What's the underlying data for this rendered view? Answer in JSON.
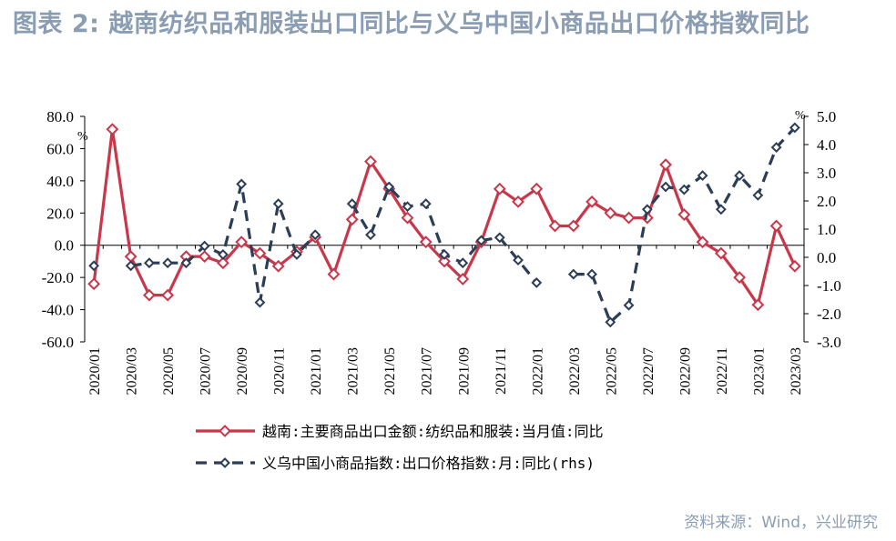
{
  "title": "图表 2:    越南纺织品和服装出口同比与义乌中国小商品出口价格指数同比",
  "source": "资料来源：Wind，兴业研究",
  "chart_data": {
    "type": "line",
    "left_unit": "%",
    "right_unit": "%",
    "ylim_left": [
      -60,
      80
    ],
    "ylim_right": [
      -3,
      5
    ],
    "left_ticks": [
      "80.0",
      "60.0",
      "40.0",
      "20.0",
      "0.0",
      "-20.0",
      "-40.0",
      "-60.0"
    ],
    "right_ticks": [
      "5.0",
      "4.0",
      "3.0",
      "2.0",
      "1.0",
      "0.0",
      "-1.0",
      "-2.0",
      "-3.0"
    ],
    "x_tick_labels": [
      "2020/01",
      "2020/03",
      "2020/05",
      "2020/07",
      "2020/09",
      "2020/11",
      "2021/01",
      "2021/03",
      "2021/05",
      "2021/07",
      "2021/09",
      "2021/11",
      "2022/01",
      "2022/03",
      "2022/05",
      "2022/07",
      "2022/09",
      "2022/11",
      "2023/01",
      "2023/03"
    ],
    "x": [
      "2020/01",
      "2020/02",
      "2020/03",
      "2020/04",
      "2020/05",
      "2020/06",
      "2020/07",
      "2020/08",
      "2020/09",
      "2020/10",
      "2020/11",
      "2020/12",
      "2021/01",
      "2021/02",
      "2021/03",
      "2021/04",
      "2021/05",
      "2021/06",
      "2021/07",
      "2021/08",
      "2021/09",
      "2021/10",
      "2021/11",
      "2021/12",
      "2022/01",
      "2022/02",
      "2022/03",
      "2022/04",
      "2022/05",
      "2022/06",
      "2022/07",
      "2022/08",
      "2022/09",
      "2022/10",
      "2022/11",
      "2022/12",
      "2023/01",
      "2023/02",
      "2023/03"
    ],
    "series": [
      {
        "name": "越南:主要商品出口金额:纺织品和服装:当月值:同比",
        "axis": "left",
        "color": "#c8374a",
        "values": [
          -24,
          72,
          -7,
          -31,
          -31,
          -7,
          -7,
          -11,
          2,
          -5,
          -13,
          -4,
          5,
          -18,
          16,
          52,
          35,
          17,
          2,
          -10,
          -21,
          2,
          35,
          27,
          35,
          12,
          12,
          27,
          20,
          17,
          17,
          50,
          19,
          2,
          -5,
          -20,
          -37,
          12,
          -13
        ]
      },
      {
        "name": "义乌中国小商品指数:出口价格指数:月:同比(rhs)",
        "axis": "right",
        "color": "#2b3d57",
        "values": [
          -0.3,
          null,
          -0.3,
          -0.2,
          -0.2,
          -0.2,
          0.4,
          0.1,
          2.6,
          -1.6,
          1.9,
          0.1,
          0.8,
          null,
          1.9,
          0.8,
          2.5,
          1.8,
          1.9,
          0.1,
          -0.2,
          0.6,
          0.7,
          -0.1,
          -0.9,
          null,
          -0.6,
          -0.6,
          -2.3,
          -1.7,
          1.7,
          2.5,
          2.4,
          2.9,
          1.7,
          2.9,
          2.2,
          3.9,
          4.6
        ]
      }
    ]
  }
}
